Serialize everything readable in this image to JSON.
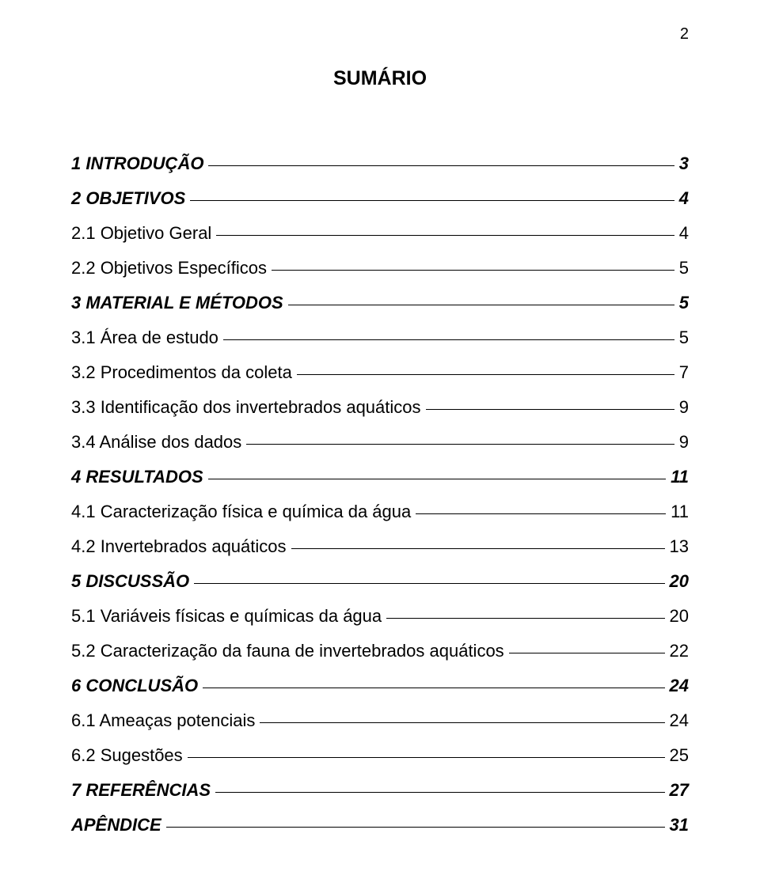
{
  "page_number": "2",
  "heading": "SUMÁRIO",
  "items": [
    {
      "label": "1 INTRODUÇÃO",
      "page": "3",
      "level": 1,
      "bold": true
    },
    {
      "label": "2 OBJETIVOS",
      "page": "4",
      "level": 1,
      "bold": true
    },
    {
      "label": "2.1 Objetivo Geral",
      "page": "4",
      "level": 2,
      "bold": false
    },
    {
      "label": "2.2 Objetivos Específicos",
      "page": "5",
      "level": 2,
      "bold": false
    },
    {
      "label": "3 MATERIAL E MÉTODOS",
      "page": "5",
      "level": 1,
      "bold": true
    },
    {
      "label": "3.1 Área de estudo",
      "page": "5",
      "level": 2,
      "bold": false
    },
    {
      "label": "3.2 Procedimentos da coleta",
      "page": "7",
      "level": 2,
      "bold": false
    },
    {
      "label": "3.3 Identificação dos invertebrados aquáticos",
      "page": "9",
      "level": 2,
      "bold": false
    },
    {
      "label": "3.4 Análise dos dados",
      "page": "9",
      "level": 2,
      "bold": false
    },
    {
      "label": "4 RESULTADOS",
      "page": "11",
      "level": 1,
      "bold": true
    },
    {
      "label": "4.1 Caracterização física e química da água",
      "page": "11",
      "level": 2,
      "bold": false
    },
    {
      "label": "4.2 Invertebrados aquáticos",
      "page": "13",
      "level": 2,
      "bold": false
    },
    {
      "label": "5 DISCUSSÃO",
      "page": "20",
      "level": 1,
      "bold": true
    },
    {
      "label": "5.1 Variáveis físicas e químicas da água",
      "page": "20",
      "level": 2,
      "bold": false
    },
    {
      "label": "5.2 Caracterização da fauna de invertebrados aquáticos",
      "page": "22",
      "level": 2,
      "bold": false
    },
    {
      "label": "6 CONCLUSÃO",
      "page": "24",
      "level": 1,
      "bold": true
    },
    {
      "label": "6.1 Ameaças potenciais",
      "page": "24",
      "level": 2,
      "bold": false
    },
    {
      "label": "6.2 Sugestões",
      "page": "25",
      "level": 2,
      "bold": false
    },
    {
      "label": "7 REFERÊNCIAS",
      "page": "27",
      "level": 1,
      "bold": true
    },
    {
      "label": "APÊNDICE",
      "page": "31",
      "level": 1,
      "bold": true
    }
  ]
}
